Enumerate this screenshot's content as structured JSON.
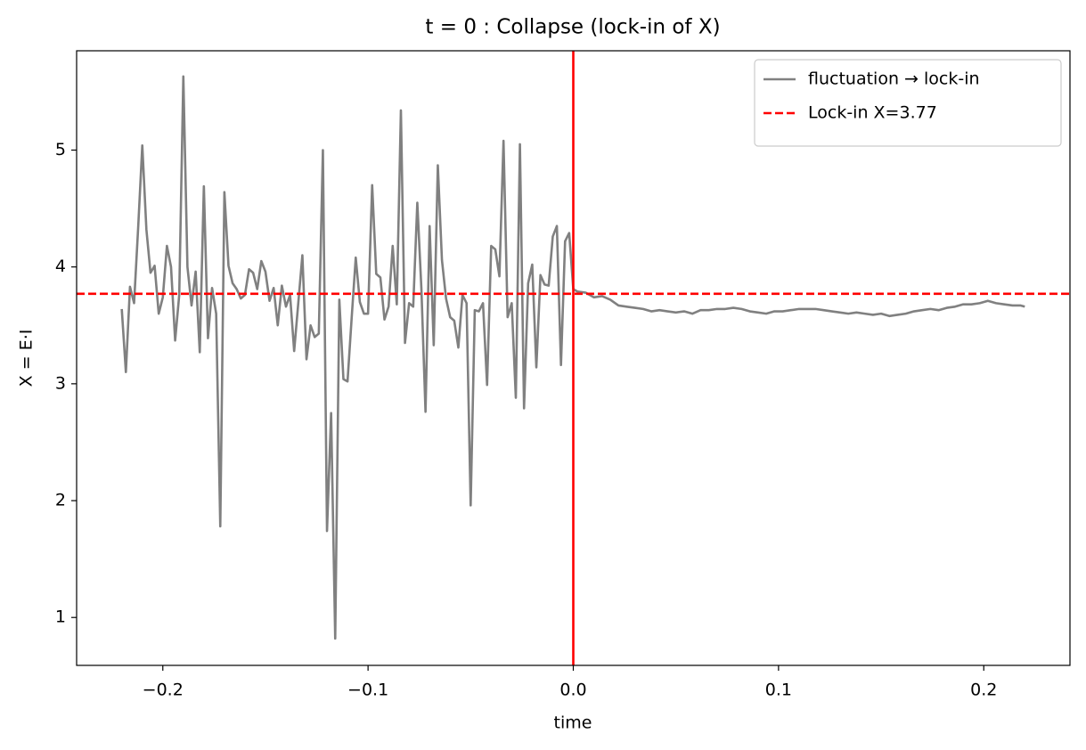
{
  "chart_data": {
    "type": "line",
    "title": "t = 0 : Collapse (lock-in of X)",
    "xlabel": "time",
    "ylabel": "X = E·I",
    "xlim": [
      -0.242,
      0.242
    ],
    "ylim": [
      0.59,
      5.85
    ],
    "xticks": [
      {
        "value": -0.2,
        "label": "−0.2"
      },
      {
        "value": -0.1,
        "label": "−0.1"
      },
      {
        "value": 0,
        "label": "0.0"
      },
      0.1,
      0.2
    ],
    "yticks": [
      1,
      2,
      3,
      4,
      5
    ],
    "grid": false,
    "legend": "upper right",
    "vline": {
      "x": 0,
      "color": "#ff0000"
    },
    "series": [
      {
        "name": "fluctuation → lock-in",
        "color": "#808080",
        "style": "solid",
        "x": [
          -0.22,
          -0.218,
          -0.216,
          -0.214,
          -0.212,
          -0.21,
          -0.208,
          -0.206,
          -0.204,
          -0.202,
          -0.2,
          -0.198,
          -0.196,
          -0.194,
          -0.192,
          -0.19,
          -0.188,
          -0.186,
          -0.184,
          -0.182,
          -0.18,
          -0.178,
          -0.176,
          -0.174,
          -0.172,
          -0.17,
          -0.168,
          -0.166,
          -0.164,
          -0.162,
          -0.16,
          -0.158,
          -0.156,
          -0.154,
          -0.152,
          -0.15,
          -0.148,
          -0.146,
          -0.144,
          -0.142,
          -0.14,
          -0.138,
          -0.136,
          -0.134,
          -0.132,
          -0.13,
          -0.128,
          -0.126,
          -0.124,
          -0.122,
          -0.12,
          -0.118,
          -0.116,
          -0.114,
          -0.112,
          -0.11,
          -0.108,
          -0.106,
          -0.104,
          -0.102,
          -0.1,
          -0.098,
          -0.096,
          -0.094,
          -0.092,
          -0.09,
          -0.088,
          -0.086,
          -0.084,
          -0.082,
          -0.08,
          -0.078,
          -0.076,
          -0.074,
          -0.072,
          -0.07,
          -0.068,
          -0.066,
          -0.064,
          -0.062,
          -0.06,
          -0.058,
          -0.056,
          -0.054,
          -0.052,
          -0.05,
          -0.048,
          -0.046,
          -0.044,
          -0.042,
          -0.04,
          -0.038,
          -0.036,
          -0.034,
          -0.032,
          -0.03,
          -0.028,
          -0.026,
          -0.024,
          -0.022,
          -0.02,
          -0.018,
          -0.016,
          -0.014,
          -0.012,
          -0.01,
          -0.008,
          -0.006,
          -0.004,
          -0.002,
          0,
          0.002,
          0.006,
          0.01,
          0.014,
          0.018,
          0.022,
          0.026,
          0.03,
          0.034,
          0.038,
          0.042,
          0.046,
          0.05,
          0.054,
          0.058,
          0.062,
          0.066,
          0.07,
          0.074,
          0.078,
          0.082,
          0.086,
          0.09,
          0.094,
          0.098,
          0.102,
          0.106,
          0.11,
          0.114,
          0.118,
          0.122,
          0.126,
          0.13,
          0.134,
          0.138,
          0.142,
          0.146,
          0.15,
          0.154,
          0.158,
          0.162,
          0.166,
          0.17,
          0.174,
          0.178,
          0.182,
          0.186,
          0.19,
          0.194,
          0.198,
          0.202,
          0.206,
          0.21,
          0.214,
          0.218,
          0.22
        ],
        "values": [
          3.64,
          3.1,
          3.83,
          3.69,
          4.34,
          5.04,
          4.32,
          3.95,
          4.01,
          3.6,
          3.74,
          4.18,
          4.0,
          3.37,
          3.76,
          5.63,
          4.0,
          3.67,
          3.96,
          3.27,
          4.69,
          3.39,
          3.82,
          3.6,
          1.78,
          4.64,
          4.01,
          3.86,
          3.81,
          3.73,
          3.76,
          3.98,
          3.95,
          3.81,
          4.05,
          3.96,
          3.71,
          3.82,
          3.5,
          3.84,
          3.66,
          3.76,
          3.28,
          3.69,
          4.1,
          3.21,
          3.5,
          3.4,
          3.43,
          5.0,
          1.74,
          2.75,
          0.82,
          3.72,
          3.04,
          3.02,
          3.56,
          4.08,
          3.7,
          3.6,
          3.6,
          4.7,
          3.94,
          3.91,
          3.55,
          3.66,
          4.18,
          3.68,
          5.34,
          3.35,
          3.69,
          3.66,
          4.55,
          3.81,
          2.76,
          4.35,
          3.33,
          4.87,
          4.06,
          3.73,
          3.57,
          3.54,
          3.31,
          3.76,
          3.69,
          1.96,
          3.63,
          3.62,
          3.69,
          2.99,
          4.18,
          4.15,
          3.92,
          5.08,
          3.57,
          3.69,
          2.88,
          5.05,
          2.79,
          3.86,
          4.02,
          3.14,
          3.93,
          3.85,
          3.84,
          4.26,
          4.35,
          3.16,
          4.22,
          4.29,
          3.81,
          3.79,
          3.78,
          3.74,
          3.75,
          3.72,
          3.67,
          3.66,
          3.65,
          3.64,
          3.62,
          3.63,
          3.62,
          3.61,
          3.62,
          3.6,
          3.63,
          3.63,
          3.64,
          3.64,
          3.65,
          3.64,
          3.62,
          3.61,
          3.6,
          3.62,
          3.62,
          3.63,
          3.64,
          3.64,
          3.64,
          3.63,
          3.62,
          3.61,
          3.6,
          3.61,
          3.6,
          3.59,
          3.6,
          3.58,
          3.59,
          3.6,
          3.62,
          3.63,
          3.64,
          3.63,
          3.65,
          3.66,
          3.68,
          3.68,
          3.69,
          3.71,
          3.69,
          3.68,
          3.67,
          3.67,
          3.66
        ]
      },
      {
        "name": "Lock-in X=3.77",
        "color": "#ff0000",
        "style": "dashed",
        "y": 3.77
      }
    ]
  }
}
